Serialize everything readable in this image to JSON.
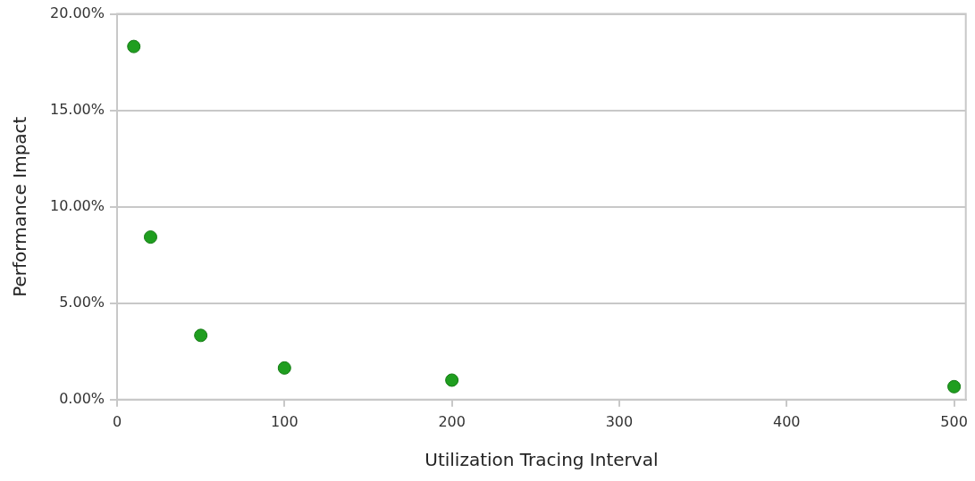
{
  "chart_data": {
    "type": "scatter",
    "xlabel": "Utilization Tracing Interval",
    "ylabel": "Performance Impact",
    "x": [
      10,
      20,
      50,
      100,
      200,
      500
    ],
    "values": [
      18.31,
      8.43,
      3.33,
      1.64,
      1.01,
      0.67
    ],
    "color": "#1f9e1f",
    "marker": "circle",
    "grid": "y",
    "legend": false,
    "xlim": [
      0,
      507
    ],
    "xticks": [
      0,
      100,
      200,
      300,
      400,
      500
    ],
    "ylim": [
      0,
      20
    ],
    "yticks": [
      {
        "value": 0,
        "label": "0.00%"
      },
      {
        "value": 5,
        "label": "5.00%"
      },
      {
        "value": 10,
        "label": "10.00%"
      },
      {
        "value": 15,
        "label": "15.00%"
      },
      {
        "value": 20,
        "label": "20.00%"
      }
    ]
  }
}
